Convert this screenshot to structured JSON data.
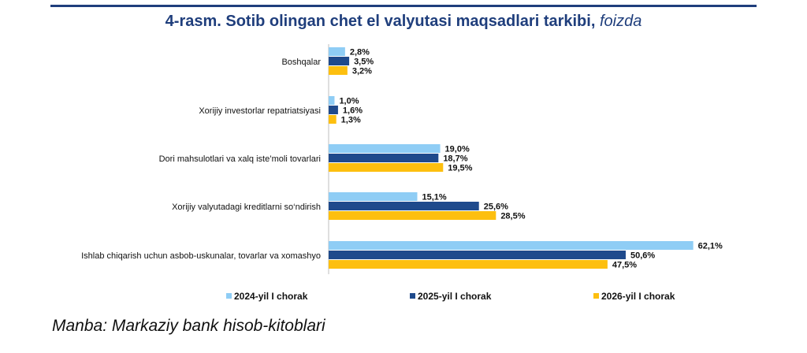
{
  "chart_data": {
    "type": "bar",
    "orientation": "horizontal",
    "title": "4-rasm. Sotib olingan chet el valyutasi maqsadlari tarkibi,",
    "title_unit": "foizda",
    "categories": [
      "Boshqalar",
      "Xorijiy investorlar repatriatsiyasi",
      "Dori mahsulotlari va xalq iste’moli tovarlari",
      "Xorijiy valyutadagi kreditlarni so‘ndirish",
      "Ishlab chiqarish uchun asbob-uskunalar, tovarlar va xomashyo"
    ],
    "series": [
      {
        "name": "2024-yil I chorak",
        "color": "#8fcdf5",
        "values": [
          2.8,
          1.0,
          19.0,
          15.1,
          62.1
        ],
        "labels": [
          "2,8%",
          "1,0%",
          "19,0%",
          "15,1%",
          "62,1%"
        ]
      },
      {
        "name": "2025-yil I chorak",
        "color": "#1f4a8c",
        "values": [
          3.5,
          1.6,
          18.7,
          25.6,
          50.6
        ],
        "labels": [
          "3,5%",
          "1,6%",
          "18,7%",
          "25,6%",
          "50,6%"
        ]
      },
      {
        "name": "2026-yil I chorak",
        "color": "#fdbf0f",
        "values": [
          3.2,
          1.3,
          19.5,
          28.5,
          47.5
        ],
        "labels": [
          "3,2%",
          "1,3%",
          "19,5%",
          "28,5%",
          "47,5%"
        ]
      }
    ],
    "xlim": [
      0,
      70
    ],
    "grid": false,
    "legend_position": "bottom"
  },
  "source": "Manba: Markaziy bank hisob-kitoblari"
}
